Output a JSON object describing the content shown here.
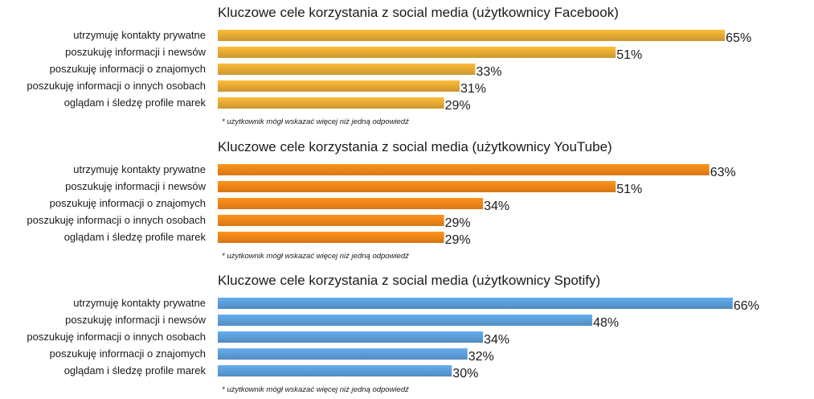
{
  "chart_data": [
    {
      "type": "bar",
      "orientation": "horizontal",
      "title": "Kluczowe cele korzystania z social media (użytkownicy Facebook)",
      "categories": [
        "utrzymuję kontakty prywatne",
        "poszukuję informacji i newsów",
        "poszukuję informacji o znajomych",
        "poszukuję informacji o innych osobach",
        "oglądam i śledzę profile marek"
      ],
      "values": [
        65,
        51,
        33,
        31,
        29
      ],
      "value_labels": [
        "65%",
        "51%",
        "33%",
        "31%",
        "29%"
      ],
      "color": "#E3A834",
      "note": "* użytkownik mógł wskazać więcej niż jedną odpowiedź"
    },
    {
      "type": "bar",
      "orientation": "horizontal",
      "title": "Kluczowe cele korzystania z social media (użytkownicy YouTube)",
      "categories": [
        "utrzymuję kontakty prywatne",
        "poszukuję informacji i newsów",
        "poszukuję informacji o znajomych",
        "poszukuję informacji o innych osobach",
        "oglądam i śledzę profile marek"
      ],
      "values": [
        63,
        51,
        34,
        29,
        29
      ],
      "value_labels": [
        "63%",
        "51%",
        "34%",
        "29%",
        "29%"
      ],
      "color": "#EE8318",
      "note": "* użytkownik mógł wskazać więcej niż jedną odpowiedź"
    },
    {
      "type": "bar",
      "orientation": "horizontal",
      "title": "Kluczowe cele korzystania z social media (użytkownicy Spotify)",
      "categories": [
        "utrzymuję kontakty prywatne",
        "poszukuję informacji i newsów",
        "poszukuję informacji o innych osobach",
        "poszukuję informacji o znajomych",
        "oglądam i śledzę profile marek"
      ],
      "values": [
        66,
        48,
        34,
        32,
        30
      ],
      "value_labels": [
        "66%",
        "48%",
        "34%",
        "32%",
        "30%"
      ],
      "color": "#5A9BD5",
      "note": "* użytkownik mógł wskazać więcej niż jedną odpowiedź"
    }
  ]
}
